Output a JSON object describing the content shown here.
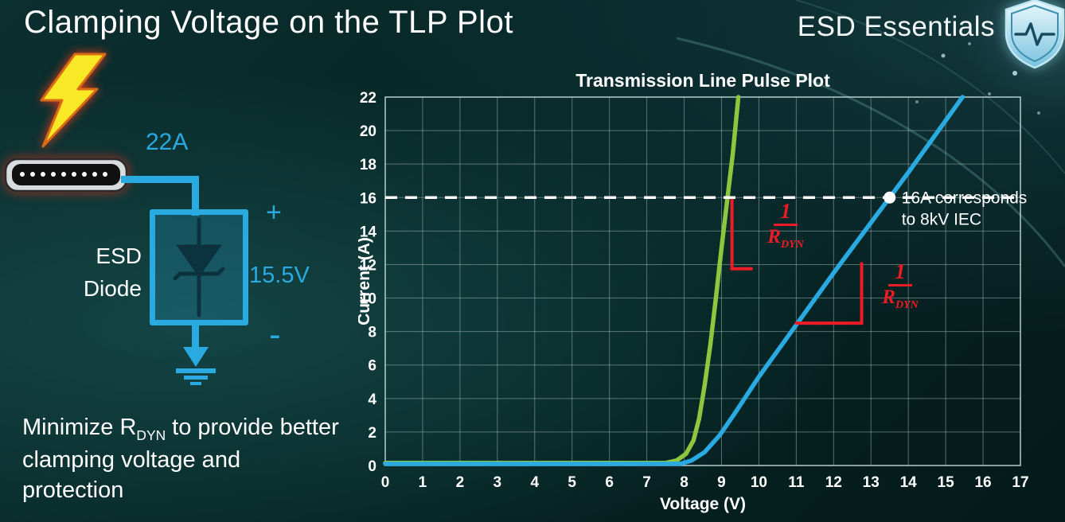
{
  "slide": {
    "title": "Clamping Voltage on the TLP Plot",
    "brand": "ESD Essentials"
  },
  "colors": {
    "accent_cyan": "#29abe2",
    "curve_green": "#8dc63f",
    "curve_blue": "#29abe2",
    "annotation_red": "#ed1c24",
    "text_white": "#ffffff"
  },
  "diagram": {
    "surge_current_label": "22A",
    "device_label_line1": "ESD",
    "device_label_line2": "Diode",
    "plus_label": "+",
    "minus_label": "-",
    "clamp_voltage_label": "15.5V"
  },
  "note": {
    "pre": "Minimize R",
    "sub": "DYN",
    "post": " to provide better clamping voltage and protection"
  },
  "chart_data": {
    "type": "line",
    "title": "Transmission Line Pulse Plot",
    "xlabel": "Voltage (V)",
    "ylabel": "Current (A)",
    "xlim": [
      0,
      17
    ],
    "ylim": [
      0,
      22
    ],
    "x_ticks": [
      0,
      1,
      2,
      3,
      4,
      5,
      6,
      7,
      8,
      9,
      10,
      11,
      12,
      13,
      14,
      15,
      16,
      17
    ],
    "y_ticks": [
      0,
      2,
      4,
      6,
      8,
      10,
      12,
      14,
      16,
      18,
      20,
      22
    ],
    "grid": true,
    "legend": "none",
    "series": [
      {
        "name": "low-rdyn-esd-diode",
        "color": "#8dc63f",
        "points": [
          [
            0,
            0.15
          ],
          [
            7.5,
            0.15
          ],
          [
            7.8,
            0.3
          ],
          [
            8.05,
            0.7
          ],
          [
            8.25,
            1.5
          ],
          [
            8.4,
            2.8
          ],
          [
            8.55,
            4.8
          ],
          [
            8.7,
            7.2
          ],
          [
            8.85,
            10.0
          ],
          [
            9.0,
            13.0
          ],
          [
            9.15,
            15.8
          ],
          [
            9.3,
            18.6
          ],
          [
            9.45,
            22
          ]
        ]
      },
      {
        "name": "high-rdyn-esd-diode",
        "color": "#29abe2",
        "points": [
          [
            0,
            0.1
          ],
          [
            7.9,
            0.1
          ],
          [
            8.2,
            0.3
          ],
          [
            8.55,
            0.8
          ],
          [
            8.95,
            1.8
          ],
          [
            9.35,
            3.1
          ],
          [
            10,
            5.3
          ],
          [
            11,
            8.4
          ],
          [
            12,
            11.5
          ],
          [
            13,
            14.5
          ],
          [
            13.5,
            16.0
          ],
          [
            14,
            17.5
          ],
          [
            15,
            20.6
          ],
          [
            15.45,
            22
          ]
        ]
      }
    ],
    "reference_line": {
      "y": 16,
      "style": "dashed",
      "color": "#ffffff"
    },
    "marker_point": {
      "x": 13.5,
      "y": 16,
      "color": "#ffffff"
    },
    "annotation": {
      "x": 13.5,
      "y": 16,
      "line1": "16A corresponds",
      "line2": "to 8kV IEC",
      "color": "#ffffff"
    },
    "slope_markers": [
      {
        "name": "green-slope-bracket",
        "color": "#ed1c24",
        "points": [
          [
            9.28,
            15.85
          ],
          [
            9.28,
            11.75
          ],
          [
            9.8,
            11.75
          ]
        ]
      },
      {
        "name": "blue-slope-bracket",
        "color": "#ed1c24",
        "points": [
          [
            11.0,
            8.5
          ],
          [
            12.75,
            8.5
          ],
          [
            12.75,
            12.05
          ]
        ]
      }
    ],
    "slope_labels": [
      {
        "numerator": "1",
        "den_main": "R",
        "den_sub": "DYN"
      },
      {
        "numerator": "1",
        "den_main": "R",
        "den_sub": "DYN"
      }
    ]
  }
}
